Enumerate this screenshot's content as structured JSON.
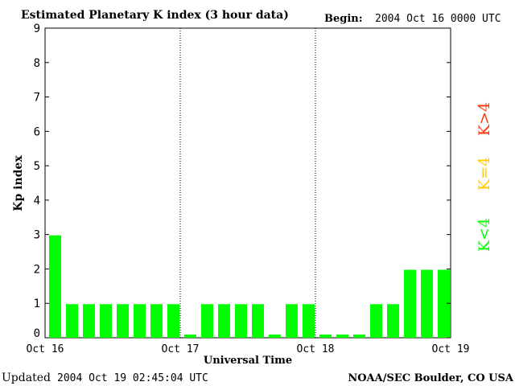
{
  "header": {
    "title": "Estimated Planetary K index (3 hour data)",
    "begin_label": "Begin:",
    "begin_value": "2004 Oct 16 0000 UTC"
  },
  "footer": {
    "updated_label": "Updated",
    "updated_value": "2004 Oct 19 02:45:04 UTC",
    "source": "NOAA/SEC Boulder, CO USA"
  },
  "legend": {
    "high": "K>4",
    "equal": "K=4",
    "low": "K<4"
  },
  "colors": {
    "low": "#00ff00",
    "equal": "#ffcc00",
    "high": "#ff3300",
    "axis": "#000000",
    "background": "#ffffff"
  },
  "chart_data": {
    "type": "bar",
    "title": "Estimated Planetary K index (3 hour data)",
    "xlabel": "Universal Time",
    "ylabel": "Kp index",
    "ylim": [
      0,
      9
    ],
    "yticks": [
      0,
      1,
      2,
      3,
      4,
      5,
      6,
      7,
      8,
      9
    ],
    "xticks": [
      "Oct 16",
      "Oct 17",
      "Oct 18",
      "Oct 19"
    ],
    "bar_interval_hours": 3,
    "day_separators": "dotted",
    "values": [
      3,
      1,
      1,
      1,
      1,
      1,
      1,
      1,
      0,
      1,
      1,
      1,
      1,
      0,
      1,
      1,
      0,
      0,
      0,
      1,
      1,
      2,
      2,
      2
    ]
  }
}
